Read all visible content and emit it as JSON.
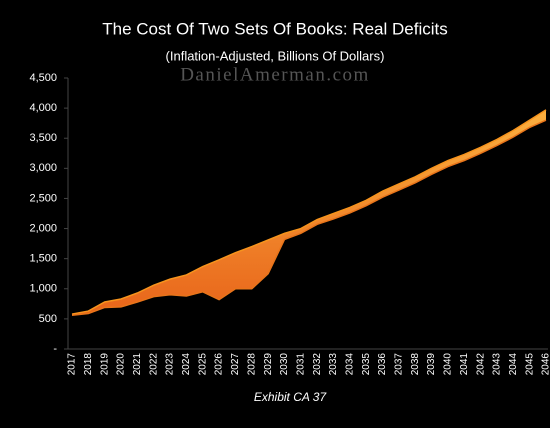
{
  "chart_data": {
    "type": "band",
    "title": "The Cost Of Two Sets Of Books: Real Deficits",
    "subtitle": "(Inflation-Adjusted, Billions Of Dollars)",
    "watermark": "DanielAmerman.com",
    "caption": "Exhibit CA 37",
    "categories": [
      "2017",
      "2018",
      "2019",
      "2020",
      "2021",
      "2022",
      "2023",
      "2024",
      "2025",
      "2026",
      "2027",
      "2028",
      "2029",
      "2030",
      "2031",
      "2032",
      "2033",
      "2034",
      "2035",
      "2036",
      "2037",
      "2038",
      "2039",
      "2040",
      "2041",
      "2042",
      "2043",
      "2044",
      "2045",
      "2046"
    ],
    "series": [
      {
        "color": "#f7941d",
        "values": [
          580,
          630,
          780,
          830,
          930,
          1060,
          1160,
          1230,
          1370,
          1480,
          1600,
          1700,
          1810,
          1920,
          2000,
          2150,
          2250,
          2350,
          2470,
          2620,
          2740,
          2860,
          3000,
          3130,
          3230,
          3350,
          3480,
          3630,
          3800,
          3970
        ]
      },
      {
        "color": "#e8741a",
        "values": [
          560,
          590,
          690,
          700,
          780,
          870,
          900,
          880,
          950,
          820,
          1000,
          1000,
          1250,
          1820,
          1920,
          2070,
          2160,
          2260,
          2380,
          2520,
          2640,
          2760,
          2900,
          3030,
          3130,
          3250,
          3380,
          3520,
          3680,
          3800
        ]
      }
    ],
    "ylim": [
      0,
      4500
    ],
    "yticks": [
      {
        "value": 0,
        "label": "-"
      },
      500,
      {
        "value": 1000,
        "label": "1,000"
      },
      {
        "value": 1500,
        "label": "1,500"
      },
      {
        "value": 2000,
        "label": "2,000"
      },
      {
        "value": 2500,
        "label": "2,500"
      },
      {
        "value": 3000,
        "label": "3,000"
      },
      {
        "value": 3500,
        "label": "3,500"
      },
      {
        "value": 4000,
        "label": "4,000"
      },
      {
        "value": 4500,
        "label": "4,500"
      }
    ],
    "grid": false
  }
}
